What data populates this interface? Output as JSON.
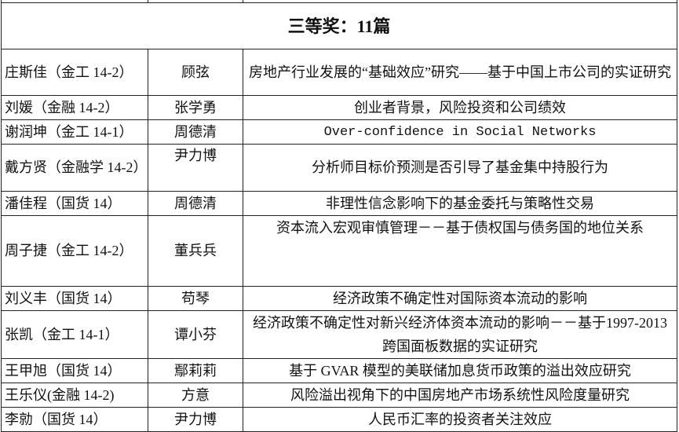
{
  "section_title": "三等奖：11篇",
  "rows": [
    {
      "student": "庄斯佳（金工 14-2）",
      "advisor": "顾弦",
      "title": "房地产行业发展的“基础效应”研究——基于中国上市公司的实证研究"
    },
    {
      "student": "刘媛（金融 14-2）",
      "advisor": "张学勇",
      "title": "创业者背景，风险投资和公司绩效"
    },
    {
      "student": "谢润坤（金工 14-1）",
      "advisor": "周德清",
      "title": "Over-confidence in Social Networks"
    },
    {
      "student": "戴方贤（金融学 14-2）",
      "advisor": "尹力博",
      "title": "分析师目标价预测是否引导了基金集中持股行为"
    },
    {
      "student": "潘佳程（国货 14）",
      "advisor": "周德清",
      "title": "非理性信念影响下的基金委托与策略性交易"
    },
    {
      "student": "周子捷（金工 14-2）",
      "advisor": "董兵兵",
      "title": "资本流入宏观审慎管理－－基于债权国与债务国的地位关系"
    },
    {
      "student": "刘义丰（国货 14）",
      "advisor": "苟琴",
      "title": "经济政策不确定性对国际资本流动的影响"
    },
    {
      "student": "张凯（金工 14-1）",
      "advisor": "谭小芬",
      "title": "经济政策不确定性对新兴经济体资本流动的影响－－基于1997-2013 跨国面板数据的实证研究"
    },
    {
      "student": "王甲旭（国货 14）",
      "advisor": "鄢莉莉",
      "title": "基于 GVAR 模型的美联储加息货币政策的溢出效应研究"
    },
    {
      "student": "王乐仪(金融 14-2)",
      "advisor": "方意",
      "title": "风险溢出视角下的中国房地产市场系统性风险度量研究"
    },
    {
      "student": "李勍（国货 14）",
      "advisor": "尹力博",
      "title": "人民币汇率的投资者关注效应"
    }
  ]
}
